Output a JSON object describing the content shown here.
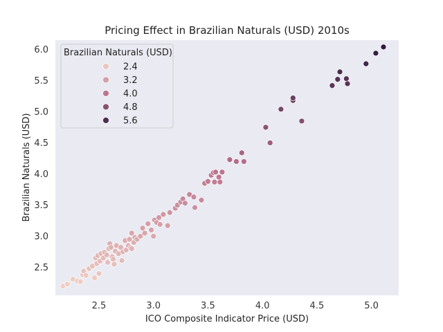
{
  "chart_data": {
    "type": "scatter",
    "title": "Pricing Effect in Brazilian Naturals (USD) 2010s",
    "xlabel": "ICO Composite Indicator Price (USD)",
    "ylabel": "Brazilian Naturals (USD)",
    "xlim": [
      2.1,
      5.25
    ],
    "ylim": [
      2.05,
      6.15
    ],
    "xticks": [
      "2.5",
      "3.0",
      "3.5",
      "4.0",
      "4.5",
      "5.0"
    ],
    "yticks": [
      "2.5",
      "3.0",
      "3.5",
      "4.0",
      "4.5",
      "5.0",
      "5.5",
      "6.0"
    ],
    "grid": false,
    "background": "#eaeaf2",
    "hue_range": [
      2.2,
      6.05
    ],
    "colors": {
      "low": "#f0d0c6",
      "mid": "#b8708c",
      "high": "#2d1a3d"
    },
    "legend": {
      "title": "Brazilian Naturals (USD)",
      "placement": "upper-left",
      "items": [
        "2.4",
        "3.2",
        "4.0",
        "4.8",
        "5.6"
      ]
    },
    "points": [
      [
        2.17,
        2.2
      ],
      [
        2.21,
        2.23
      ],
      [
        2.26,
        2.31
      ],
      [
        2.3,
        2.28
      ],
      [
        2.33,
        2.27
      ],
      [
        2.35,
        2.38
      ],
      [
        2.36,
        2.44
      ],
      [
        2.38,
        2.37
      ],
      [
        2.41,
        2.48
      ],
      [
        2.44,
        2.52
      ],
      [
        2.46,
        2.33
      ],
      [
        2.47,
        2.65
      ],
      [
        2.48,
        2.56
      ],
      [
        2.49,
        2.69
      ],
      [
        2.5,
        2.4
      ],
      [
        2.51,
        2.6
      ],
      [
        2.52,
        2.72
      ],
      [
        2.54,
        2.65
      ],
      [
        2.55,
        2.74
      ],
      [
        2.57,
        2.7
      ],
      [
        2.58,
        2.58
      ],
      [
        2.59,
        2.8
      ],
      [
        2.6,
        2.88
      ],
      [
        2.61,
        2.82
      ],
      [
        2.62,
        2.67
      ],
      [
        2.63,
        2.63
      ],
      [
        2.64,
        2.55
      ],
      [
        2.65,
        2.76
      ],
      [
        2.66,
        2.85
      ],
      [
        2.68,
        2.72
      ],
      [
        2.7,
        2.82
      ],
      [
        2.71,
        2.61
      ],
      [
        2.72,
        2.75
      ],
      [
        2.74,
        2.93
      ],
      [
        2.75,
        2.78
      ],
      [
        2.77,
        2.85
      ],
      [
        2.78,
        2.95
      ],
      [
        2.79,
        2.82
      ],
      [
        2.8,
        2.8
      ],
      [
        2.8,
        3.05
      ],
      [
        2.82,
        2.9
      ],
      [
        2.83,
        2.98
      ],
      [
        2.85,
        2.95
      ],
      [
        2.88,
        3.0
      ],
      [
        2.9,
        3.13
      ],
      [
        2.92,
        3.05
      ],
      [
        2.95,
        3.2
      ],
      [
        2.98,
        3.1
      ],
      [
        3.0,
        3.0
      ],
      [
        3.01,
        3.26
      ],
      [
        3.03,
        3.22
      ],
      [
        3.05,
        3.3
      ],
      [
        3.06,
        3.19
      ],
      [
        3.09,
        3.35
      ],
      [
        3.13,
        3.17
      ],
      [
        3.15,
        3.38
      ],
      [
        3.2,
        3.45
      ],
      [
        3.22,
        3.5
      ],
      [
        3.25,
        3.55
      ],
      [
        3.27,
        3.6
      ],
      [
        3.29,
        3.53
      ],
      [
        3.33,
        3.67
      ],
      [
        3.37,
        3.63
      ],
      [
        3.38,
        3.46
      ],
      [
        3.44,
        3.58
      ],
      [
        3.47,
        3.85
      ],
      [
        3.5,
        3.88
      ],
      [
        3.53,
        3.98
      ],
      [
        3.55,
        4.02
      ],
      [
        3.56,
        3.87
      ],
      [
        3.57,
        4.03
      ],
      [
        3.6,
        3.95
      ],
      [
        3.61,
        3.87
      ],
      [
        3.63,
        4.03
      ],
      [
        3.7,
        4.23
      ],
      [
        3.76,
        4.2
      ],
      [
        3.81,
        4.34
      ],
      [
        3.83,
        4.2
      ],
      [
        4.03,
        4.75
      ],
      [
        4.07,
        4.5
      ],
      [
        4.17,
        5.04
      ],
      [
        4.28,
        5.18
      ],
      [
        4.28,
        5.22
      ],
      [
        4.36,
        4.85
      ],
      [
        4.64,
        5.42
      ],
      [
        4.69,
        5.52
      ],
      [
        4.71,
        5.64
      ],
      [
        4.77,
        5.53
      ],
      [
        4.78,
        5.45
      ],
      [
        4.95,
        5.77
      ],
      [
        5.04,
        5.94
      ],
      [
        5.11,
        6.04
      ]
    ]
  }
}
